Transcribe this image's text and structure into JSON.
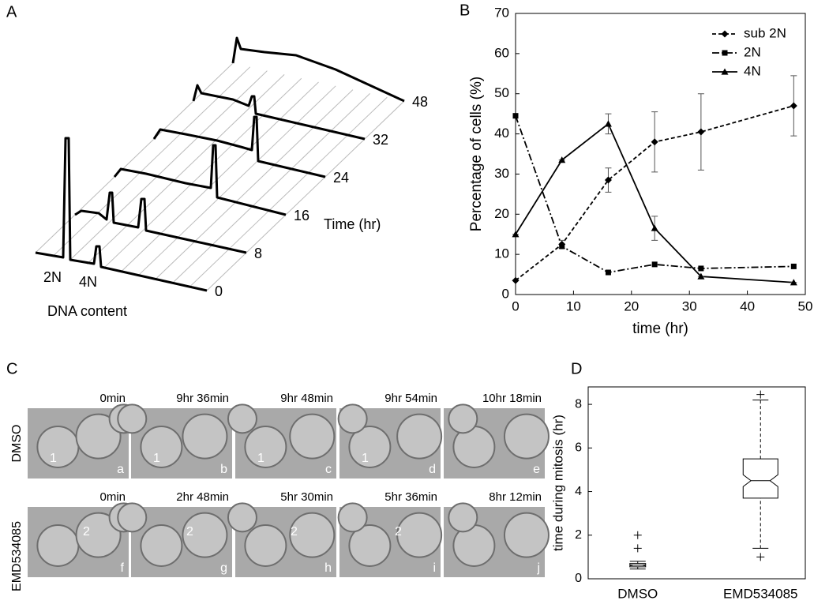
{
  "panel_labels": [
    "A",
    "B",
    "C",
    "D"
  ],
  "panel_a": {
    "time_label": "Time (hr)",
    "x_label": "DNA content",
    "peak_labels": [
      "2N",
      "4N"
    ],
    "times": [
      0,
      8,
      16,
      24,
      32,
      48
    ]
  },
  "panel_c": {
    "rows": [
      {
        "label": "DMSO",
        "frames": [
          {
            "time": "0min",
            "letter": "a",
            "cell": "1"
          },
          {
            "time": "9hr 36min",
            "letter": "b",
            "cell": "1"
          },
          {
            "time": "9hr 48min",
            "letter": "c",
            "cell": "1"
          },
          {
            "time": "9hr 54min",
            "letter": "d",
            "cell": "1"
          },
          {
            "time": "10hr 18min",
            "letter": "e"
          }
        ]
      },
      {
        "label": "EMD534085",
        "frames": [
          {
            "time": "0min",
            "letter": "f",
            "cell": "2"
          },
          {
            "time": "2hr 48min",
            "letter": "g",
            "cell": "2"
          },
          {
            "time": "5hr 30min",
            "letter": "h",
            "cell": "2"
          },
          {
            "time": "5hr 36min",
            "letter": "i",
            "cell": "2"
          },
          {
            "time": "8hr 12min",
            "letter": "j"
          }
        ]
      }
    ]
  },
  "chart_data": [
    {
      "type": "line",
      "x_label": "time (hr)",
      "y_label": "Percentage of cells (%)",
      "x": [
        0,
        8,
        16,
        24,
        32,
        48
      ],
      "series": [
        {
          "name": "sub 2N",
          "color": "#000000",
          "line_style": "dashed",
          "marker": "diamond",
          "values": [
            3.5,
            12.5,
            28.5,
            38,
            40.5,
            47
          ],
          "errors": [
            0,
            1,
            3,
            7.5,
            9.5,
            7.5
          ]
        },
        {
          "name": "2N",
          "color": "#000000",
          "line_style": "dashdot",
          "marker": "square",
          "values": [
            44.5,
            12,
            5.5,
            7.5,
            6.5,
            7
          ]
        },
        {
          "name": "4N",
          "color": "#000000",
          "line_style": "solid",
          "marker": "triangle",
          "values": [
            15,
            33.5,
            42.5,
            16.5,
            4.5,
            3
          ],
          "errors": [
            0,
            0,
            2.5,
            3,
            0,
            0
          ]
        }
      ],
      "xlim": [
        0,
        50
      ],
      "xticks": [
        0,
        10,
        20,
        30,
        40,
        50
      ],
      "ylim": [
        0,
        70
      ],
      "yticks": [
        0,
        10,
        20,
        30,
        40,
        50,
        60,
        70
      ],
      "legend": "top-right"
    },
    {
      "type": "box",
      "y_label": "time during mitosis (hr)",
      "categories": [
        "DMSO",
        "EMD534085"
      ],
      "whisker_low": [
        0.45,
        1.4
      ],
      "q1": [
        0.55,
        3.7
      ],
      "median": [
        0.62,
        4.5
      ],
      "q3": [
        0.7,
        5.5
      ],
      "whisker_high": [
        0.8,
        8.2
      ],
      "outliers": [
        [
          1.4,
          2.0
        ],
        [
          1.0,
          8.45
        ]
      ],
      "ylim": [
        0,
        8.8
      ],
      "yticks": [
        0,
        2,
        4,
        6,
        8
      ],
      "notched": true,
      "color": "#000000"
    }
  ]
}
